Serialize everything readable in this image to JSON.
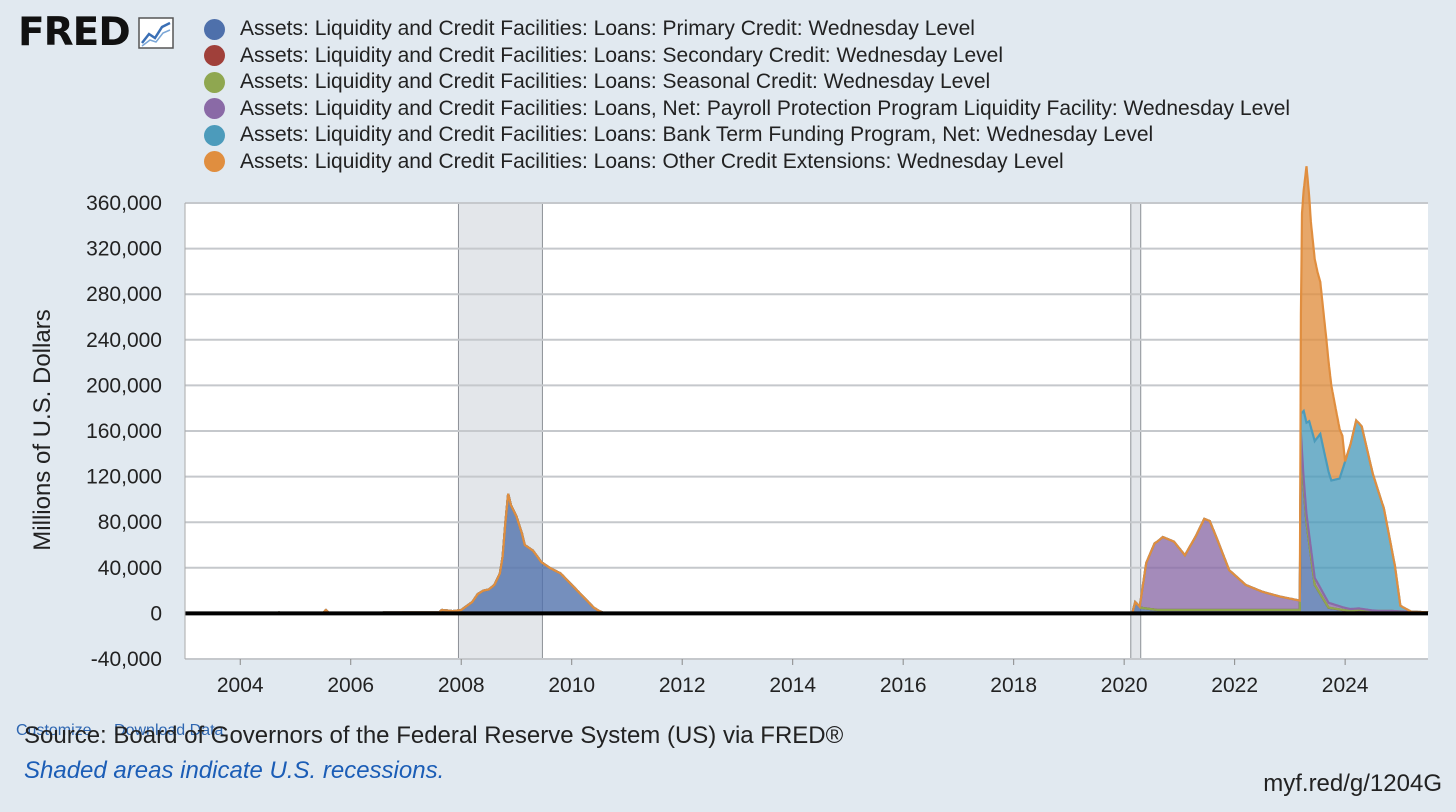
{
  "logo": {
    "text": "FRED",
    "icon": "line-chart-icon"
  },
  "legend": [
    {
      "label": "Assets: Liquidity and Credit Facilities: Loans: Primary Credit: Wednesday Level",
      "color": "#4e70ab"
    },
    {
      "label": "Assets: Liquidity and Credit Facilities: Loans: Secondary Credit: Wednesday Level",
      "color": "#a0403a"
    },
    {
      "label": "Assets: Liquidity and Credit Facilities: Loans: Seasonal Credit: Wednesday Level",
      "color": "#8fa750"
    },
    {
      "label": "Assets: Liquidity and Credit Facilities: Loans, Net: Payroll Protection Program Liquidity Facility: Wednesday Level",
      "color": "#8a6aa6"
    },
    {
      "label": "Assets: Liquidity and Credit Facilities: Loans: Bank Term Funding Program, Net: Wednesday Level",
      "color": "#4c9bbb"
    },
    {
      "label": "Assets: Liquidity and Credit Facilities: Loans: Other Credit Extensions: Wednesday Level",
      "color": "#e08e3f"
    }
  ],
  "chart_data": {
    "type": "area",
    "stacked": true,
    "ylabel": "Millions of U.S. Dollars",
    "ylim": [
      -40000,
      360000
    ],
    "yticks": [
      "360,000",
      "320,000",
      "280,000",
      "240,000",
      "200,000",
      "160,000",
      "120,000",
      "80,000",
      "40,000",
      "0",
      "-40,000"
    ],
    "xlim": [
      2003,
      2025.5
    ],
    "xticks": [
      "2004",
      "2006",
      "2008",
      "2010",
      "2012",
      "2014",
      "2016",
      "2018",
      "2020",
      "2022",
      "2024"
    ],
    "grid": true,
    "legend_position": "top",
    "recessions": [
      {
        "start": 2007.95,
        "end": 2009.47
      },
      {
        "start": 2020.12,
        "end": 2020.3
      }
    ],
    "series": [
      {
        "name": "Assets: Liquidity and Credit Facilities: Loans: Primary Credit: Wednesday Level",
        "color": "#4e70ab",
        "x": [
          2003.0,
          2005.5,
          2005.55,
          2005.6,
          2007.6,
          2007.65,
          2007.85,
          2008.0,
          2008.2,
          2008.3,
          2008.4,
          2008.5,
          2008.6,
          2008.7,
          2008.75,
          2008.8,
          2008.85,
          2008.9,
          2009.0,
          2009.1,
          2009.15,
          2009.3,
          2009.45,
          2009.6,
          2009.8,
          2009.9,
          2010.0,
          2010.2,
          2010.3,
          2010.4,
          2010.5,
          2010.6,
          2011.0,
          2020.15,
          2020.2,
          2020.3,
          2020.6,
          2023.18,
          2023.2,
          2023.25,
          2023.3,
          2023.45,
          2023.7,
          2023.95,
          2024.1,
          2024.25,
          2024.5,
          2024.8,
          2025.0,
          2025.5
        ],
        "y": [
          0,
          500,
          3000,
          500,
          1000,
          3000,
          2000,
          3000,
          10000,
          17000,
          20000,
          21000,
          25000,
          35000,
          50000,
          80000,
          105000,
          95000,
          85000,
          70000,
          60000,
          55000,
          45000,
          40000,
          35000,
          30000,
          25000,
          15000,
          10000,
          5000,
          2000,
          0,
          0,
          500,
          10000,
          5000,
          3000,
          3000,
          150000,
          110000,
          80000,
          25000,
          5000,
          3000,
          2000,
          3000,
          2000,
          2000,
          1500,
          1000
        ]
      },
      {
        "name": "Assets: Liquidity and Credit Facilities: Loans: Secondary Credit: Wednesday Level",
        "color": "#a0403a",
        "x": [
          2003.0,
          2025.5
        ],
        "y": [
          0,
          0
        ]
      },
      {
        "name": "Assets: Liquidity and Credit Facilities: Loans: Seasonal Credit: Wednesday Level",
        "color": "#8fa750",
        "x": [
          2003.0,
          2004.6,
          2004.7,
          2004.8,
          2023.0,
          2023.2,
          2024.8,
          2025.5
        ],
        "y": [
          0,
          0,
          500,
          0,
          0,
          0,
          300,
          0
        ]
      },
      {
        "name": "Assets: Liquidity and Credit Facilities: Loans, Net: Payroll Protection Program Liquidity Facility: Wednesday Level",
        "color": "#8a6aa6",
        "x": [
          2003.0,
          2020.28,
          2020.4,
          2020.55,
          2020.7,
          2020.9,
          2021.1,
          2021.3,
          2021.45,
          2021.55,
          2021.7,
          2021.9,
          2022.2,
          2022.5,
          2022.8,
          2023.0,
          2023.2,
          2023.6,
          2024.0,
          2024.3,
          2024.6,
          2025.5
        ],
        "y": [
          0,
          0,
          40000,
          58000,
          64000,
          60000,
          48000,
          65000,
          80000,
          78000,
          60000,
          35000,
          22000,
          16000,
          12000,
          10000,
          8000,
          5000,
          2000,
          1000,
          0,
          0
        ]
      },
      {
        "name": "Assets: Liquidity and Credit Facilities: Loans: Bank Term Funding Program, Net: Wednesday Level",
        "color": "#4c9bbb",
        "x": [
          2003.0,
          2023.18,
          2023.25,
          2023.35,
          2023.45,
          2023.55,
          2023.75,
          2023.9,
          2024.1,
          2024.2,
          2024.3,
          2024.5,
          2024.7,
          2024.9,
          2025.0,
          2025.2,
          2025.5
        ],
        "y": [
          0,
          0,
          60000,
          100000,
          120000,
          135000,
          108000,
          112000,
          145000,
          165000,
          160000,
          120000,
          90000,
          40000,
          5000,
          0,
          0
        ]
      },
      {
        "name": "Assets: Liquidity and Credit Facilities: Loans: Other Credit Extensions: Wednesday Level",
        "color": "#e08e3f",
        "x": [
          2003.0,
          2023.18,
          2023.22,
          2023.3,
          2023.38,
          2023.5,
          2023.65,
          2023.8,
          2023.95,
          2024.0,
          2025.5
        ],
        "y": [
          0,
          0,
          175000,
          225000,
          180000,
          145000,
          110000,
          70000,
          30000,
          0,
          0
        ]
      }
    ]
  },
  "links": {
    "customize": "Customize",
    "download": "Download Data"
  },
  "source": "Source: Board of Governors of the Federal Reserve System (US) via FRED®",
  "shade_note": "Shaded areas indicate U.S. recessions.",
  "short_url": "myf.red/g/1204G"
}
